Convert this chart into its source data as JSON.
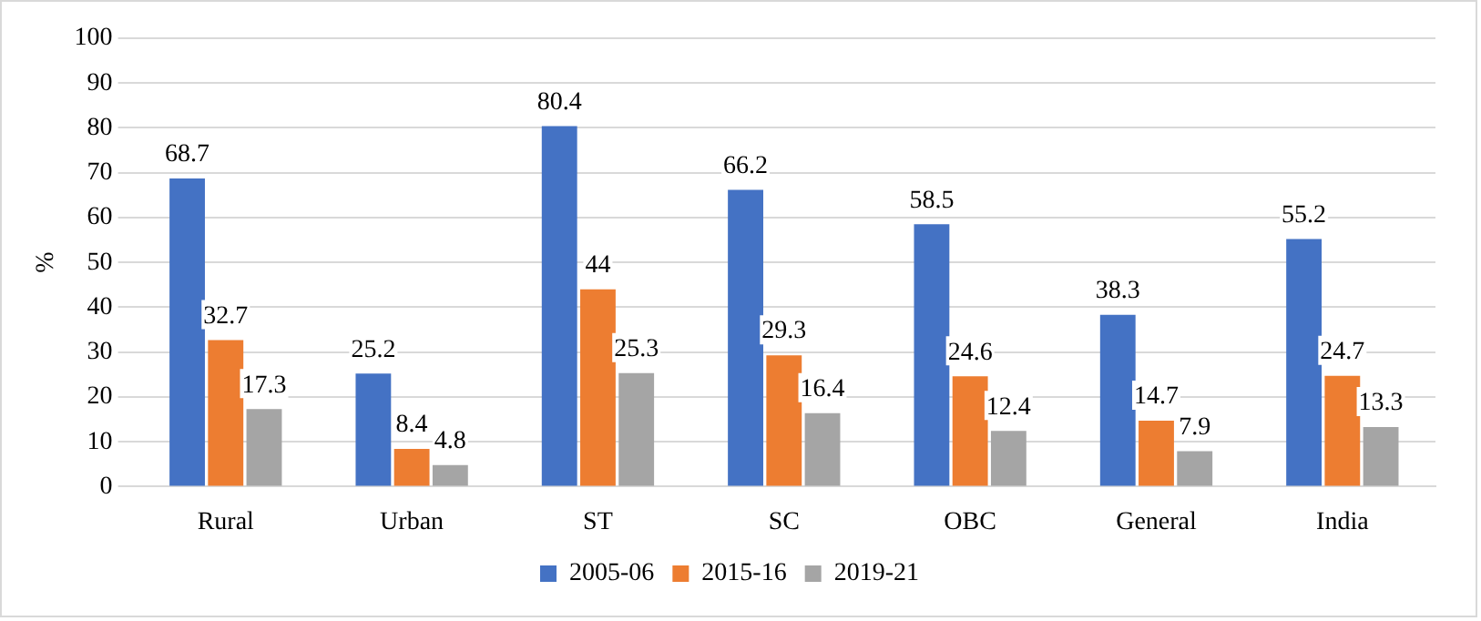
{
  "chart_data": {
    "type": "bar",
    "ylabel": "%",
    "categories": [
      "Rural",
      "Urban",
      "ST",
      "SC",
      "OBC",
      "General",
      "India"
    ],
    "series": [
      {
        "name": "2005-06",
        "color": "#4472c4",
        "values": [
          68.7,
          25.2,
          80.4,
          66.2,
          58.5,
          38.3,
          55.2
        ]
      },
      {
        "name": "2015-16",
        "color": "#ed7d31",
        "values": [
          32.7,
          8.4,
          44,
          29.3,
          24.6,
          14.7,
          24.7
        ]
      },
      {
        "name": "2019-21",
        "color": "#a5a5a5",
        "values": [
          17.3,
          4.8,
          25.3,
          16.4,
          12.4,
          7.9,
          13.3
        ]
      }
    ],
    "ylim": [
      0,
      100
    ],
    "yticks": [
      0,
      10,
      20,
      30,
      40,
      50,
      60,
      70,
      80,
      90,
      100
    ],
    "grid": "y",
    "legend": "bottom",
    "data_labels": true
  }
}
